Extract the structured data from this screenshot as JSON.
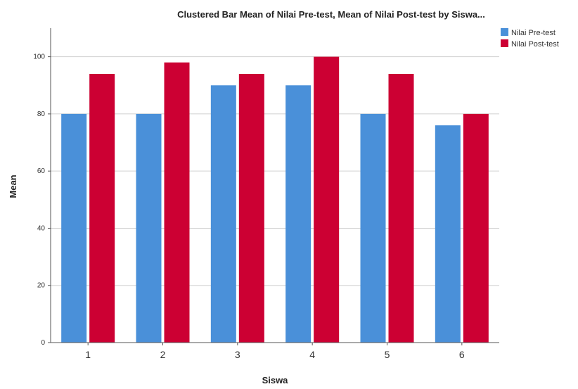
{
  "chart_data": {
    "type": "bar",
    "title": "Clustered Bar Mean of Nilai Pre-test, Mean of Nilai Post-test by Siswa...",
    "xlabel": "Siswa",
    "ylabel": "Mean",
    "categories": [
      "1",
      "2",
      "3",
      "4",
      "5",
      "6"
    ],
    "ylim": [
      0,
      110
    ],
    "yticks": [
      0,
      20,
      40,
      60,
      80,
      100
    ],
    "grid": true,
    "legend_position": "top-right",
    "series": [
      {
        "name": "Nilai Pre-test",
        "color": "#4a90d9",
        "values": [
          80,
          80,
          90,
          90,
          80,
          76
        ]
      },
      {
        "name": "Nilai Post-test",
        "color": "#cc0033",
        "values": [
          94,
          98,
          94,
          100,
          94,
          80
        ]
      }
    ]
  }
}
